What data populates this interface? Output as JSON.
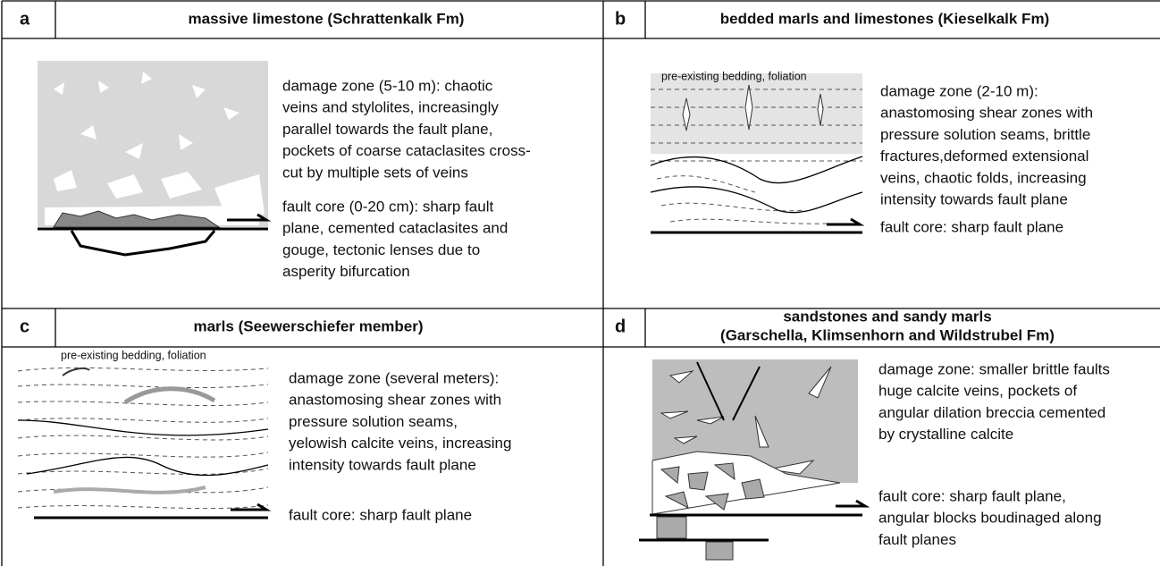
{
  "panels": [
    {
      "label": "a",
      "title": [
        "massive limestone (Schrattenkalk Fm)"
      ],
      "damage_zone": [
        "damage zone (5-10 m): chaotic",
        "veins and stylolites, increasingly",
        "parallel towards the fault plane,",
        "pockets of coarse cataclasites cross-",
        "cut by multiple sets of veins"
      ],
      "fault_core": [
        "fault core (0-20 cm): sharp fault",
        "plane, cemented cataclasites and",
        "gouge, tectonic lenses due to",
        "asperity bifurcation"
      ]
    },
    {
      "label": "b",
      "title": [
        "bedded marls and limestones (Kieselkalk Fm)"
      ],
      "annotation": "pre-existing bedding, foliation",
      "damage_zone": [
        "damage zone (2-10 m):",
        "anastomosing shear zones with",
        "pressure solution seams, brittle",
        "fractures,deformed extensional",
        "veins, chaotic folds, increasing",
        "intensity towards fault plane"
      ],
      "fault_core": [
        "fault core: sharp fault plane"
      ]
    },
    {
      "label": "c",
      "title": [
        "marls (Seewerschiefer member)"
      ],
      "annotation": "pre-existing bedding, foliation",
      "damage_zone": [
        "damage zone (several meters):",
        "anastomosing shear zones with",
        "pressure solution seams,",
        "yelowish calcite veins, increasing",
        "intensity towards fault plane"
      ],
      "fault_core": [
        "fault core: sharp fault plane"
      ]
    },
    {
      "label": "d",
      "title": [
        "sandstones and sandy marls",
        "(Garschella, Klimsenhorn and Wildstrubel Fm)"
      ],
      "damage_zone": [
        "damage zone: smaller brittle faults",
        "huge calcite veins, pockets of",
        "angular dilation breccia cemented",
        "by crystalline calcite"
      ],
      "fault_core": [
        "fault core: sharp fault plane,",
        "angular blocks boudinaged along",
        "fault planes"
      ]
    }
  ]
}
